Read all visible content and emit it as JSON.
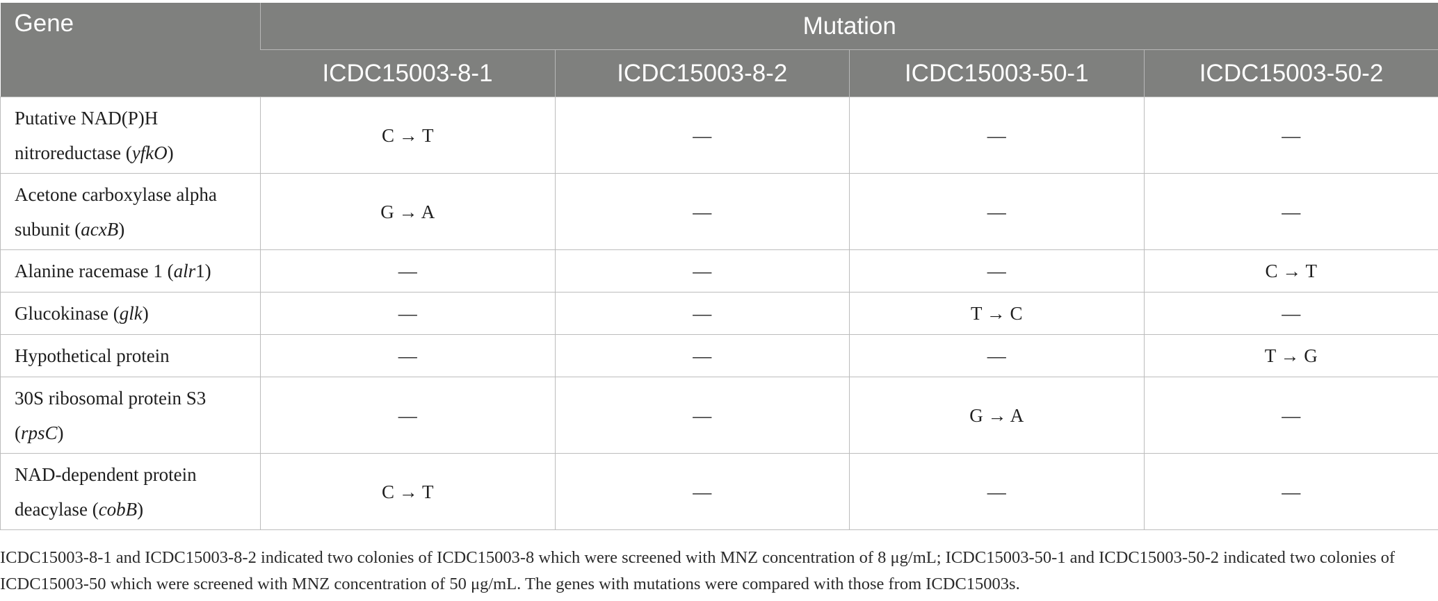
{
  "header": {
    "gene_label": "Gene",
    "mutation_label": "Mutation",
    "isolates": [
      "ICDC15003-8-1",
      "ICDC15003-8-2",
      "ICDC15003-50-1",
      "ICDC15003-50-2"
    ]
  },
  "rows": [
    {
      "gene_name": "Putative NAD(P)H nitroreductase",
      "symbol": "yfkO",
      "symbol_suffix": "",
      "values": [
        "C → T",
        "—",
        "—",
        "—"
      ]
    },
    {
      "gene_name": "Acetone carboxylase alpha subunit",
      "symbol": "acxB",
      "symbol_suffix": "",
      "values": [
        "G → A",
        "—",
        "—",
        "—"
      ]
    },
    {
      "gene_name": "Alanine racemase 1",
      "symbol": "alr",
      "symbol_suffix": "1",
      "values": [
        "—",
        "—",
        "—",
        "C → T"
      ]
    },
    {
      "gene_name": "Glucokinase",
      "symbol": "glk",
      "symbol_suffix": "",
      "values": [
        "—",
        "—",
        "T → C",
        "—"
      ]
    },
    {
      "gene_name": "Hypothetical protein",
      "symbol": "",
      "symbol_suffix": "",
      "values": [
        "—",
        "—",
        "—",
        "T → G"
      ]
    },
    {
      "gene_name": "30S ribosomal protein S3",
      "symbol": "rpsC",
      "symbol_suffix": "",
      "values": [
        "—",
        "—",
        "G → A",
        "—"
      ]
    },
    {
      "gene_name": "NAD-dependent protein deacylase",
      "symbol": "cobB",
      "symbol_suffix": "",
      "values": [
        "C → T",
        "—",
        "—",
        "—"
      ]
    }
  ],
  "footnote": "ICDC15003-8-1 and ICDC15003-8-2 indicated two colonies of ICDC15003-8 which were screened with MNZ concentration of 8 μg/mL; ICDC15003-50-1 and ICDC15003-50-2 indicated two colonies of ICDC15003-50 which were screened with MNZ concentration of 50 μg/mL. The genes with mutations were compared with those from ICDC15003s."
}
